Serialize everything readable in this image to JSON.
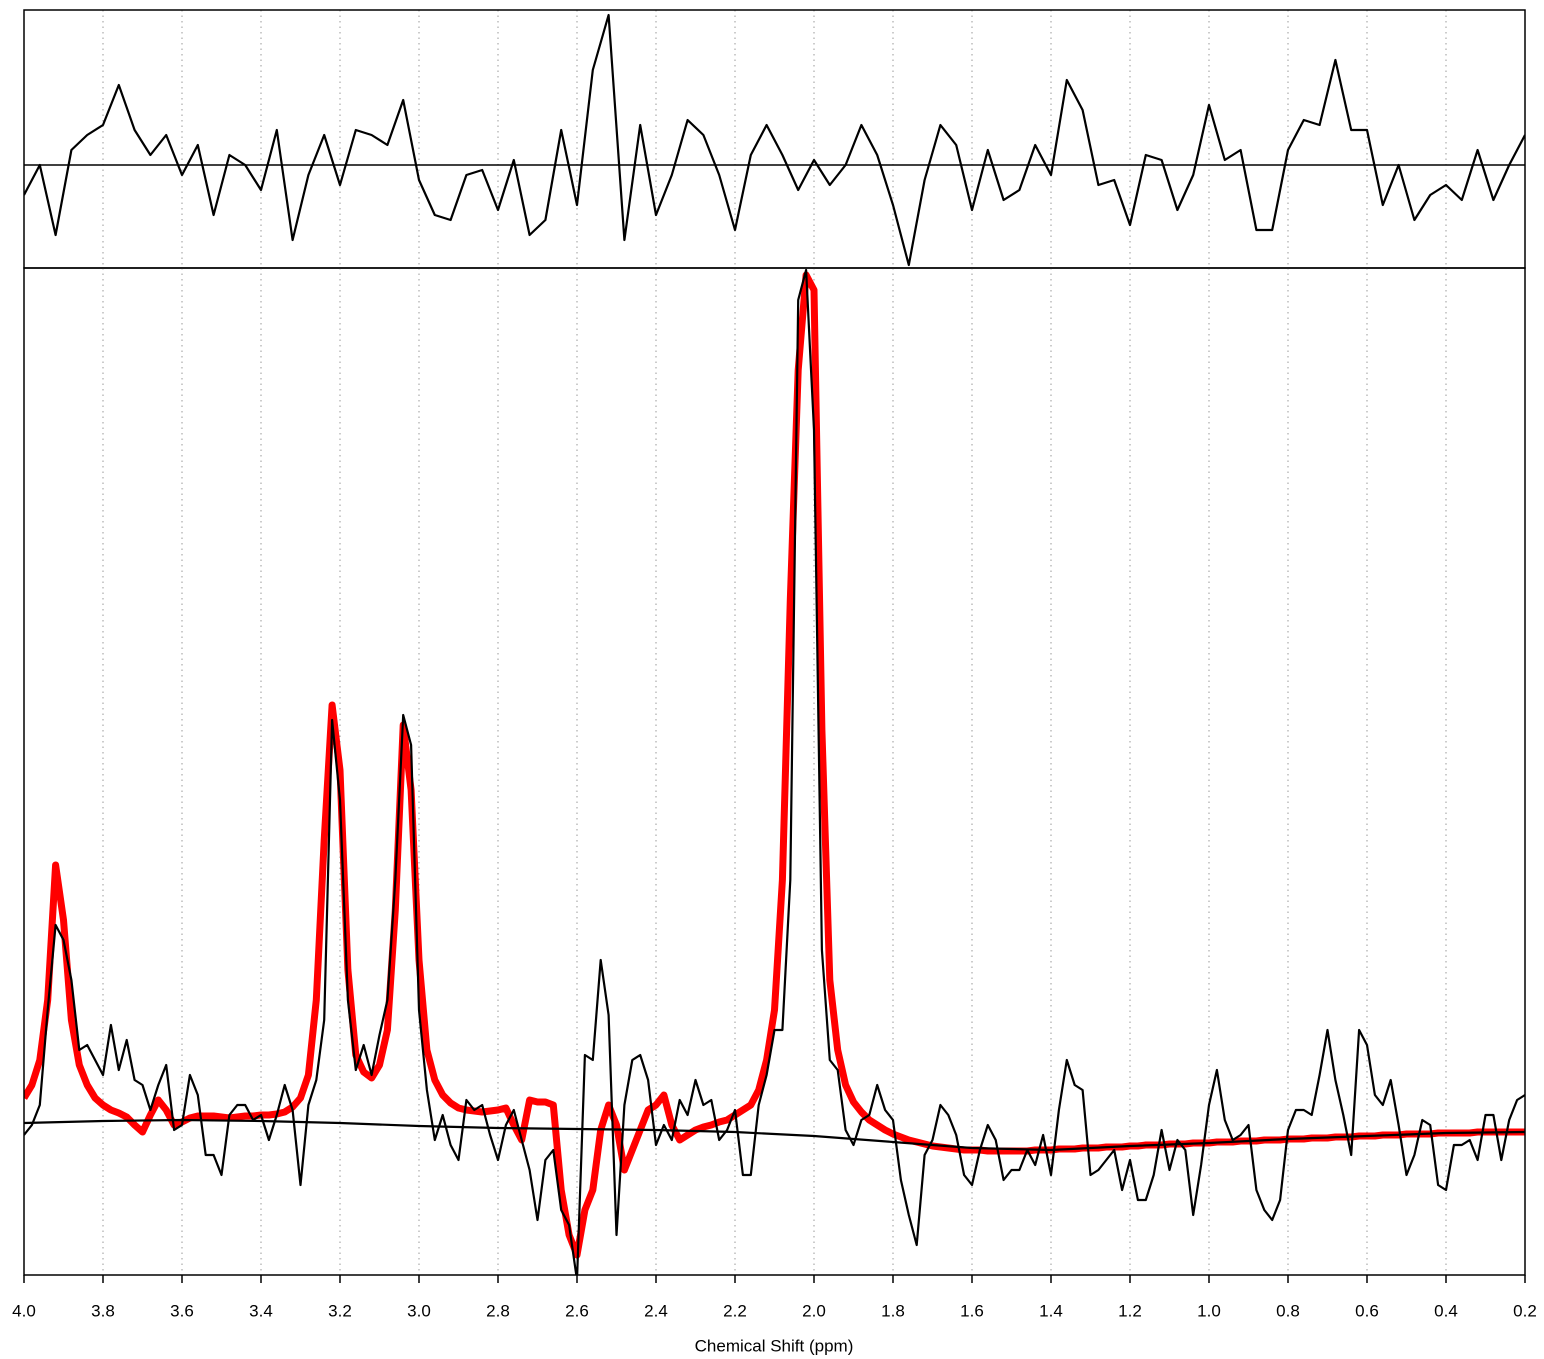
{
  "chart_data": [
    {
      "type": "line",
      "x": [
        4.0,
        3.96,
        3.92,
        3.88,
        3.84,
        3.8,
        3.76,
        3.72,
        3.68,
        3.64,
        3.6,
        3.56,
        3.52,
        3.48,
        3.44,
        3.4,
        3.36,
        3.32,
        3.28,
        3.24,
        3.2,
        3.16,
        3.12,
        3.08,
        3.04,
        3.0,
        2.96,
        2.92,
        2.88,
        2.84,
        2.8,
        2.76,
        2.72,
        2.68,
        2.64,
        2.6,
        2.56,
        2.52,
        2.48,
        2.44,
        2.4,
        2.36,
        2.32,
        2.28,
        2.24,
        2.2,
        2.16,
        2.12,
        2.08,
        2.04,
        2.0,
        1.96,
        1.92,
        1.88,
        1.84,
        1.8,
        1.76,
        1.72,
        1.68,
        1.64,
        1.6,
        1.56,
        1.52,
        1.48,
        1.44,
        1.4,
        1.36,
        1.32,
        1.28,
        1.24,
        1.2,
        1.16,
        1.12,
        1.08,
        1.04,
        1.0,
        0.96,
        0.92,
        0.88,
        0.84,
        0.8,
        0.76,
        0.72,
        0.68,
        0.64,
        0.6,
        0.56,
        0.52,
        0.48,
        0.44,
        0.4,
        0.36,
        0.32,
        0.28,
        0.24,
        0.2
      ],
      "series": [
        {
          "color": "#000000",
          "linewidth": 2.2,
          "values": [
            -30,
            0,
            -70,
            15,
            30,
            40,
            80,
            35,
            10,
            30,
            -10,
            20,
            -50,
            10,
            0,
            -25,
            35,
            -75,
            -10,
            30,
            -20,
            35,
            30,
            20,
            65,
            -15,
            -50,
            -55,
            -10,
            -5,
            -45,
            5,
            -70,
            -55,
            35,
            -40,
            95,
            150,
            -75,
            40,
            -50,
            -10,
            45,
            30,
            -10,
            -65,
            10,
            40,
            10,
            -25,
            5,
            -20,
            0,
            40,
            10,
            -40,
            -100,
            -15,
            40,
            20,
            -45,
            15,
            -35,
            -25,
            20,
            -10,
            85,
            55,
            -20,
            -15,
            -60,
            10,
            5,
            -45,
            -10,
            60,
            5,
            15,
            -65,
            -65,
            15,
            45,
            40,
            105,
            35,
            35,
            -40,
            0,
            -55,
            -30,
            -20,
            -35,
            15,
            -35,
            0,
            30
          ]
        }
      ],
      "hlines": [
        0
      ],
      "xlim": [
        4.0,
        0.2
      ],
      "ylim": [
        -103,
        155
      ],
      "xticks": [
        {
          "value": 4.0,
          "label": "4.0"
        },
        3.8,
        3.6,
        3.4,
        3.2,
        {
          "value": 3.0,
          "label": "3.0"
        },
        2.8,
        2.6,
        2.4,
        2.2,
        {
          "value": 2.0,
          "label": "2.0"
        },
        1.8,
        1.6,
        1.4,
        1.2,
        {
          "value": 1.0,
          "label": "1.0"
        },
        0.8,
        0.6,
        0.4,
        0.2
      ],
      "grid": true
    },
    {
      "type": "line",
      "xlabel": "Chemical Shift (ppm)",
      "x": [
        4.0,
        3.98,
        3.96,
        3.94,
        3.92,
        3.9,
        3.88,
        3.86,
        3.84,
        3.82,
        3.8,
        3.78,
        3.76,
        3.74,
        3.72,
        3.7,
        3.68,
        3.66,
        3.64,
        3.62,
        3.6,
        3.58,
        3.56,
        3.54,
        3.52,
        3.5,
        3.48,
        3.46,
        3.44,
        3.42,
        3.4,
        3.38,
        3.36,
        3.34,
        3.32,
        3.3,
        3.28,
        3.26,
        3.24,
        3.22,
        3.2,
        3.18,
        3.16,
        3.14,
        3.12,
        3.1,
        3.08,
        3.06,
        3.04,
        3.02,
        3.0,
        2.98,
        2.96,
        2.94,
        2.92,
        2.9,
        2.88,
        2.86,
        2.84,
        2.82,
        2.8,
        2.78,
        2.76,
        2.74,
        2.72,
        2.7,
        2.68,
        2.66,
        2.64,
        2.62,
        2.6,
        2.58,
        2.56,
        2.54,
        2.52,
        2.5,
        2.48,
        2.46,
        2.44,
        2.42,
        2.4,
        2.38,
        2.36,
        2.34,
        2.32,
        2.3,
        2.28,
        2.26,
        2.24,
        2.22,
        2.2,
        2.18,
        2.16,
        2.14,
        2.12,
        2.1,
        2.08,
        2.06,
        2.04,
        2.02,
        2.0,
        1.98,
        1.96,
        1.94,
        1.92,
        1.9,
        1.88,
        1.86,
        1.84,
        1.82,
        1.8,
        1.78,
        1.76,
        1.74,
        1.72,
        1.7,
        1.68,
        1.66,
        1.64,
        1.62,
        1.6,
        1.58,
        1.56,
        1.54,
        1.52,
        1.5,
        1.48,
        1.46,
        1.44,
        1.42,
        1.4,
        1.38,
        1.36,
        1.34,
        1.32,
        1.3,
        1.28,
        1.26,
        1.24,
        1.22,
        1.2,
        1.18,
        1.16,
        1.14,
        1.12,
        1.1,
        1.08,
        1.06,
        1.04,
        1.02,
        1.0,
        0.98,
        0.96,
        0.94,
        0.92,
        0.9,
        0.88,
        0.86,
        0.84,
        0.82,
        0.8,
        0.78,
        0.76,
        0.74,
        0.72,
        0.7,
        0.68,
        0.66,
        0.64,
        0.62,
        0.6,
        0.58,
        0.56,
        0.54,
        0.52,
        0.5,
        0.48,
        0.46,
        0.44,
        0.42,
        0.4,
        0.38,
        0.36,
        0.34,
        0.32,
        0.3,
        0.28,
        0.26,
        0.24,
        0.22,
        0.2
      ],
      "series": [
        {
          "color": "#ff0000",
          "linewidth": 7,
          "values": [
            32,
            45,
            70,
            130,
            265,
            210,
            110,
            65,
            45,
            32,
            25,
            20,
            17,
            13,
            5,
            -2,
            15,
            30,
            20,
            5,
            8,
            12,
            14,
            14,
            14,
            13,
            12,
            13,
            14,
            14,
            15,
            15,
            16,
            18,
            23,
            32,
            55,
            130,
            290,
            425,
            360,
            160,
            75,
            58,
            52,
            65,
            100,
            220,
            405,
            340,
            170,
            80,
            50,
            35,
            27,
            22,
            20,
            19,
            18,
            19,
            20,
            22,
            5,
            -10,
            30,
            28,
            28,
            25,
            -60,
            -105,
            -125,
            -80,
            -60,
            0,
            25,
            5,
            -40,
            -20,
            0,
            20,
            25,
            35,
            5,
            -10,
            -5,
            0,
            3,
            5,
            8,
            10,
            15,
            20,
            25,
            40,
            70,
            120,
            250,
            530,
            760,
            855,
            840,
            400,
            150,
            80,
            45,
            28,
            18,
            10,
            5,
            0,
            -4,
            -7,
            -10,
            -12,
            -14,
            -16,
            -17,
            -18,
            -19,
            -20,
            -20,
            -20,
            -21,
            -21,
            -21,
            -21,
            -21,
            -21,
            -20,
            -20,
            -20,
            -19,
            -19,
            -19,
            -18,
            -18,
            -18,
            -17,
            -17,
            -17,
            -16,
            -16,
            -15,
            -15,
            -15,
            -14,
            -14,
            -14,
            -13,
            -13,
            -13,
            -12,
            -12,
            -12,
            -11,
            -11,
            -11,
            -10,
            -10,
            -10,
            -9,
            -9,
            -9,
            -8,
            -8,
            -8,
            -7,
            -7,
            -7,
            -6,
            -6,
            -6,
            -5,
            -5,
            -5,
            -4,
            -4,
            -4,
            -4,
            -3,
            -3,
            -3,
            -3,
            -3,
            -2,
            -2,
            -2,
            -2,
            -2,
            -2,
            -2
          ]
        },
        {
          "color": "#000000",
          "linewidth": 2.2,
          "x": [
            4.0,
            3.8,
            3.6,
            3.4,
            3.2,
            3.0,
            2.8,
            2.6,
            2.4,
            2.2,
            2.0,
            1.8,
            1.6,
            1.4,
            1.2,
            1.0,
            0.8,
            0.6,
            0.4,
            0.2
          ],
          "values": [
            7,
            9,
            10,
            9,
            7,
            4,
            2,
            1,
            0,
            -2,
            -6,
            -12,
            -18,
            -20,
            -16,
            -13,
            -9,
            -6,
            -3,
            -2
          ]
        },
        {
          "color": "#000000",
          "linewidth": 2.2,
          "values": [
            -5,
            5,
            25,
            120,
            205,
            190,
            150,
            80,
            85,
            70,
            55,
            105,
            60,
            90,
            50,
            45,
            20,
            45,
            65,
            0,
            5,
            55,
            35,
            -25,
            -25,
            -45,
            15,
            25,
            25,
            10,
            15,
            -10,
            15,
            45,
            20,
            -55,
            25,
            50,
            110,
            410,
            330,
            130,
            60,
            85,
            55,
            95,
            130,
            250,
            415,
            385,
            120,
            40,
            -10,
            15,
            -15,
            -30,
            30,
            20,
            25,
            -5,
            -30,
            5,
            20,
            -10,
            -40,
            -90,
            -30,
            -20,
            -80,
            -95,
            -150,
            75,
            70,
            170,
            115,
            -105,
            25,
            70,
            75,
            50,
            -15,
            5,
            -10,
            30,
            15,
            50,
            25,
            30,
            -10,
            0,
            20,
            -45,
            -45,
            25,
            55,
            100,
            100,
            250,
            830,
            860,
            700,
            180,
            70,
            60,
            0,
            -15,
            10,
            15,
            45,
            20,
            10,
            -50,
            -85,
            -115,
            -25,
            -10,
            25,
            15,
            -5,
            -45,
            -55,
            -20,
            5,
            -10,
            -50,
            -40,
            -40,
            -20,
            -35,
            -5,
            -45,
            20,
            70,
            45,
            40,
            -45,
            -40,
            -30,
            -20,
            -60,
            -30,
            -70,
            -70,
            -45,
            0,
            -40,
            -10,
            -20,
            -85,
            -35,
            25,
            60,
            10,
            -10,
            -5,
            5,
            -60,
            -80,
            -90,
            -70,
            0,
            20,
            20,
            15,
            55,
            100,
            50,
            15,
            -25,
            100,
            85,
            35,
            25,
            50,
            5,
            -45,
            -25,
            10,
            5,
            -55,
            -60,
            -15,
            -15,
            -10,
            -30,
            15,
            15,
            -30,
            10,
            30,
            35
          ]
        }
      ],
      "xlim": [
        4.0,
        0.2
      ],
      "ylim": [
        -145,
        862
      ],
      "xticks": [
        {
          "value": 4.0,
          "label": "4.0"
        },
        3.8,
        3.6,
        3.4,
        3.2,
        {
          "value": 3.0,
          "label": "3.0"
        },
        2.8,
        2.6,
        2.4,
        2.2,
        {
          "value": 2.0,
          "label": "2.0"
        },
        1.8,
        1.6,
        1.4,
        1.2,
        {
          "value": 1.0,
          "label": "1.0"
        },
        0.8,
        0.6,
        0.4,
        0.2
      ],
      "grid": true
    }
  ]
}
